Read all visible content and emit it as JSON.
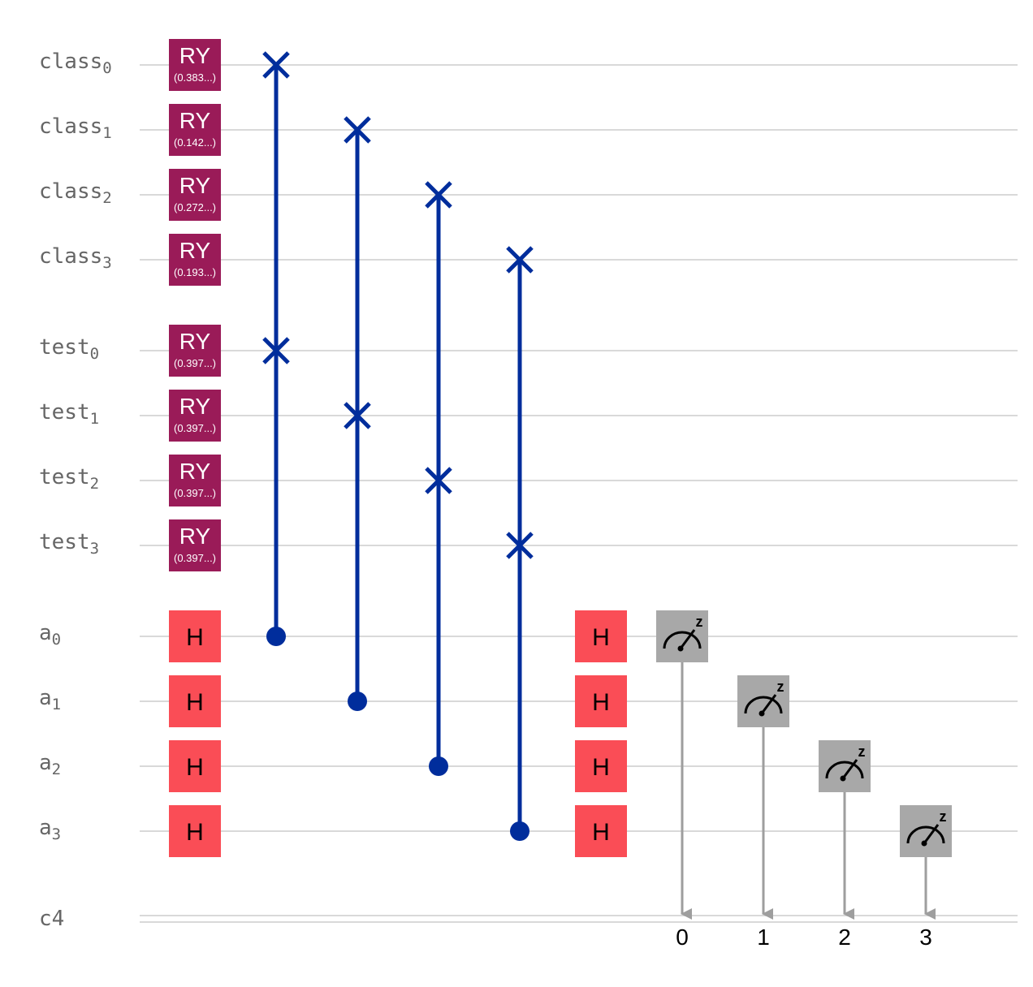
{
  "colors": {
    "wire": "#d9d9d9",
    "ry_gate": "#9a1b58",
    "h_gate": "#fa4d56",
    "connector": "#002d9c",
    "measure_gate": "#a8a8a8",
    "measure_line": "#9e9e9e",
    "label": "#666666"
  },
  "qubits": [
    {
      "name": "class",
      "index": "0",
      "ry_param": "(0.383...)"
    },
    {
      "name": "class",
      "index": "1",
      "ry_param": "(0.142...)"
    },
    {
      "name": "class",
      "index": "2",
      "ry_param": "(0.272...)"
    },
    {
      "name": "class",
      "index": "3",
      "ry_param": "(0.193...)"
    },
    {
      "name": "test",
      "index": "0",
      "ry_param": "(0.397...)"
    },
    {
      "name": "test",
      "index": "1",
      "ry_param": "(0.397...)"
    },
    {
      "name": "test",
      "index": "2",
      "ry_param": "(0.397...)"
    },
    {
      "name": "test",
      "index": "3",
      "ry_param": "(0.397...)"
    },
    {
      "name": "a",
      "index": "0"
    },
    {
      "name": "a",
      "index": "1"
    },
    {
      "name": "a",
      "index": "2"
    },
    {
      "name": "a",
      "index": "3"
    }
  ],
  "classical": {
    "label": "c4",
    "bits": [
      "0",
      "1",
      "2",
      "3"
    ]
  },
  "gates": {
    "ry_label": "RY",
    "h_label": "H",
    "measure_symbol": "z"
  },
  "cswaps": [
    {
      "control": 8,
      "targets": [
        0,
        4
      ]
    },
    {
      "control": 9,
      "targets": [
        1,
        5
      ]
    },
    {
      "control": 10,
      "targets": [
        2,
        6
      ]
    },
    {
      "control": 11,
      "targets": [
        3,
        7
      ]
    }
  ],
  "measurements": [
    {
      "qubit": 8,
      "bit": 0
    },
    {
      "qubit": 9,
      "bit": 1
    },
    {
      "qubit": 10,
      "bit": 2
    },
    {
      "qubit": 11,
      "bit": 3
    }
  ]
}
